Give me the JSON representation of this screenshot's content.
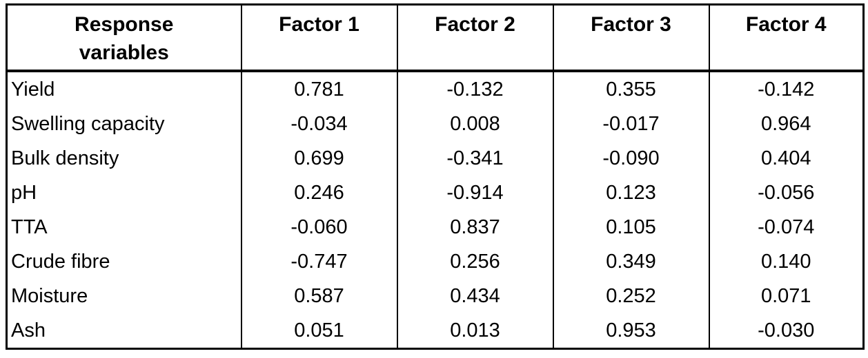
{
  "table": {
    "headers": [
      "Response variables",
      "Factor 1",
      "Factor 2",
      "Factor 3",
      "Factor 4"
    ],
    "rows": [
      {
        "label": "Yield",
        "values": [
          "0.781",
          "-0.132",
          "0.355",
          "-0.142"
        ]
      },
      {
        "label": "Swelling capacity",
        "values": [
          "-0.034",
          "0.008",
          "-0.017",
          "0.964"
        ]
      },
      {
        "label": "Bulk density",
        "values": [
          "0.699",
          "-0.341",
          "-0.090",
          "0.404"
        ]
      },
      {
        "label": "pH",
        "values": [
          "0.246",
          "-0.914",
          "0.123",
          "-0.056"
        ]
      },
      {
        "label": "TTA",
        "values": [
          "-0.060",
          "0.837",
          "0.105",
          "-0.074"
        ]
      },
      {
        "label": "Crude fibre",
        "values": [
          "-0.747",
          "0.256",
          "0.349",
          "0.140"
        ]
      },
      {
        "label": "Moisture",
        "values": [
          "0.587",
          "0.434",
          "0.252",
          "0.071"
        ]
      },
      {
        "label": "Ash",
        "values": [
          "0.051",
          "0.013",
          "0.953",
          "-0.030"
        ]
      }
    ]
  }
}
